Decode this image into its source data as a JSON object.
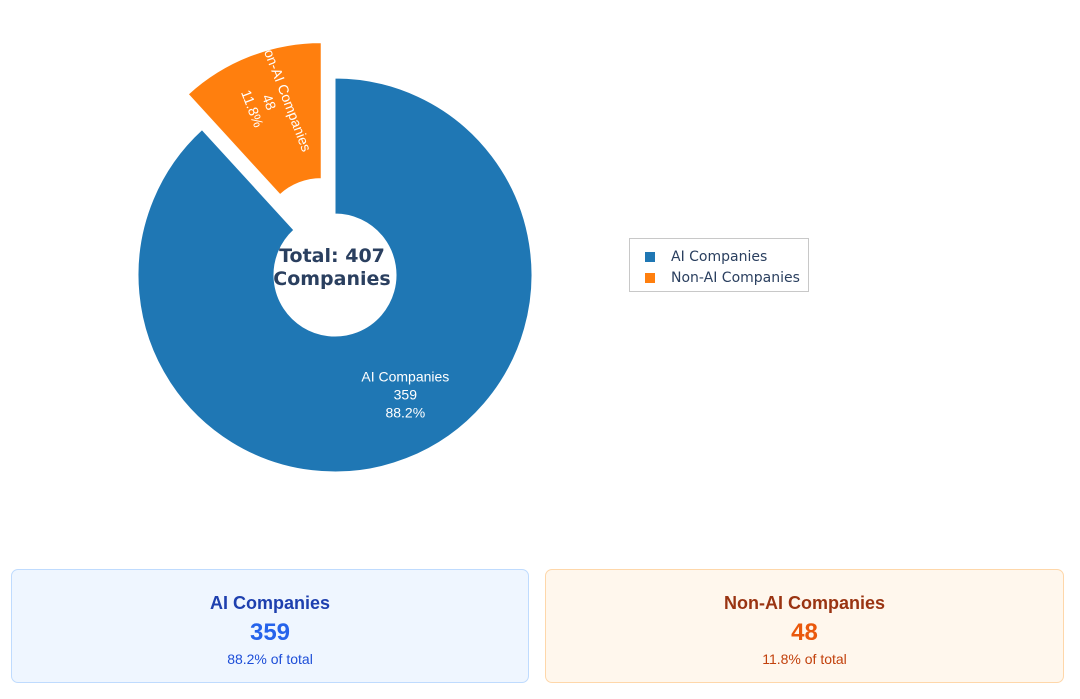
{
  "chart_data": {
    "type": "pie",
    "hole": true,
    "center_text": [
      "Total: 407",
      "Companies"
    ],
    "slices": [
      {
        "label": "AI Companies",
        "value": 359,
        "value_text": "359",
        "percent_text": "88.2%",
        "color": "#1f77b4",
        "pulled": false
      },
      {
        "label": "Non-AI Companies",
        "value": 48,
        "value_text": "48",
        "percent_text": "11.8%",
        "color": "#ff7f0e",
        "pulled": true
      }
    ],
    "legend": {
      "placement": "right",
      "entries": [
        "AI Companies",
        "Non-AI Companies"
      ]
    }
  },
  "cards": [
    {
      "title": "AI Companies",
      "value": "359",
      "subtitle": "88.2% of total",
      "accent": "#2563eb"
    },
    {
      "title": "Non-AI Companies",
      "value": "48",
      "subtitle": "11.8% of total",
      "accent": "#ea580c"
    }
  ]
}
